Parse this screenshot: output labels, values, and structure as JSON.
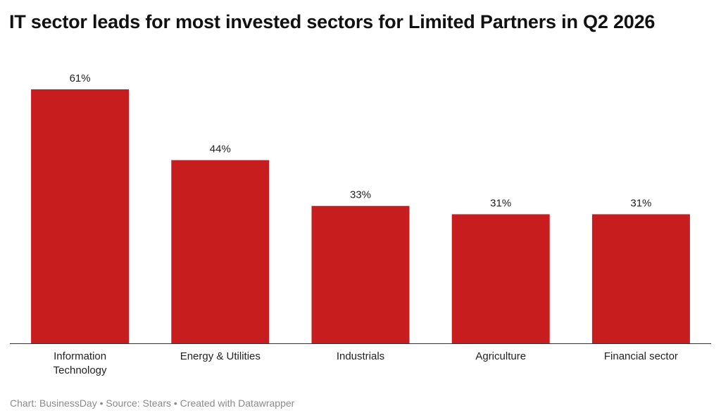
{
  "title": "IT sector leads for most invested sectors for Limited Partners in Q2 2026",
  "footer": "Chart: BusinessDay • Source: Stears • Created with Datawrapper",
  "colors": {
    "bar": "#c81d1f",
    "axis": "#333333",
    "text": "#222222"
  },
  "chart_data": {
    "type": "bar",
    "title": "IT sector leads for most invested sectors for Limited Partners in Q2 2026",
    "categories": [
      "Information Technology",
      "Energy & Utilities",
      "Industrials",
      "Agriculture",
      "Financial sector"
    ],
    "category_lines": [
      [
        "Information",
        "Technology"
      ],
      [
        "Energy & Utilities"
      ],
      [
        "Industrials"
      ],
      [
        "Agriculture"
      ],
      [
        "Financial sector"
      ]
    ],
    "values": [
      61,
      44,
      33,
      31,
      31
    ],
    "value_labels": [
      "61%",
      "44%",
      "33%",
      "31%",
      "31%"
    ],
    "unit": "%",
    "ylim": [
      0,
      61
    ],
    "grid": false,
    "legend": "none",
    "xlabel": "",
    "ylabel": ""
  }
}
